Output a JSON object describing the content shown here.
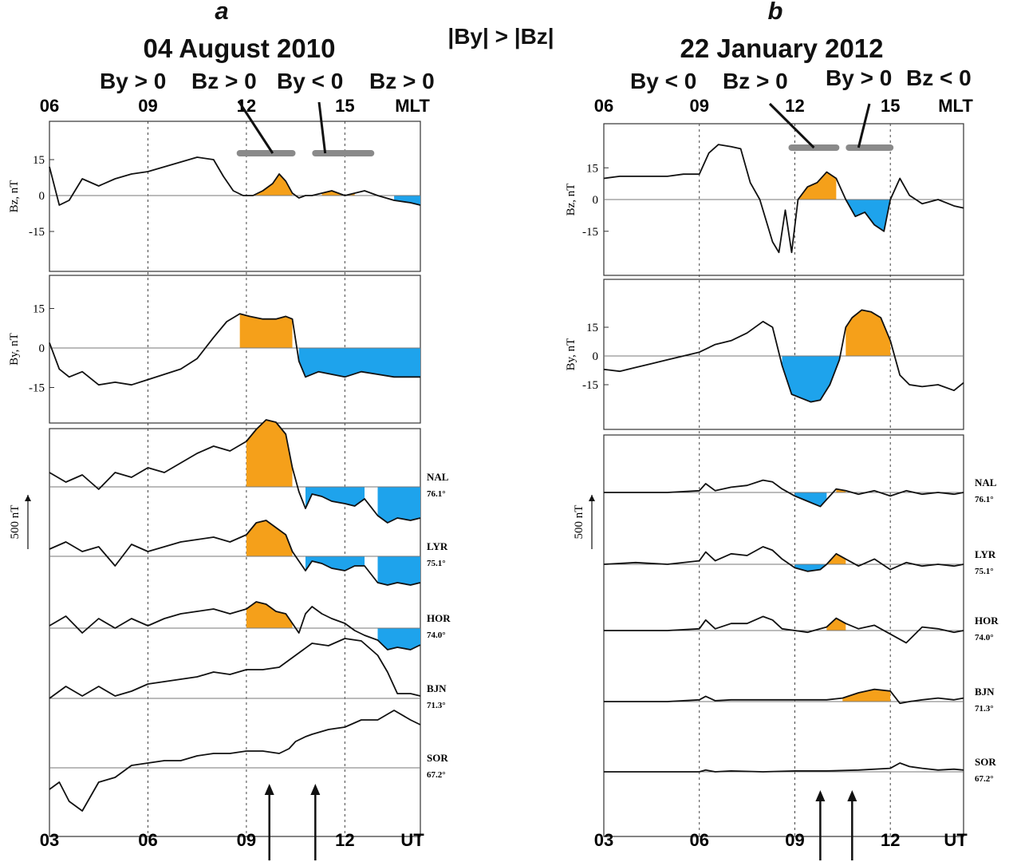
{
  "middle_label": "|By| > |Bz|",
  "colors": {
    "positive_fill": "#f5a01a",
    "negative_fill": "#1ea3ec",
    "line": "#111111",
    "interval_bar": "#8a8a8a"
  },
  "panels": [
    {
      "letter": "a",
      "date": "04 August 2010",
      "conditions": [
        "By > 0",
        "Bz > 0",
        "By < 0",
        "Bz > 0"
      ],
      "mlt_ticks": [
        "06",
        "09",
        "12",
        "15"
      ],
      "mlt_label": "MLT",
      "ut_ticks": [
        "03",
        "06",
        "09",
        "12"
      ],
      "ut_label": "UT",
      "bz_axis": {
        "label": "Bz, nT",
        "ticks": [
          "15",
          "0",
          "-15"
        ]
      },
      "by_axis": {
        "label": "By, nT",
        "ticks": [
          "15",
          "0",
          "-15"
        ]
      },
      "scale_label": "500 nT",
      "stations": [
        {
          "code": "NAL",
          "lat": "76.1°"
        },
        {
          "code": "LYR",
          "lat": "75.1°"
        },
        {
          "code": "HOR",
          "lat": "74.0°"
        },
        {
          "code": "BJN",
          "lat": "71.3°"
        },
        {
          "code": "SOR",
          "lat": "67.2°"
        }
      ]
    },
    {
      "letter": "b",
      "date": "22 January 2012",
      "conditions": [
        "By < 0",
        "Bz > 0",
        "By > 0",
        "Bz < 0"
      ],
      "mlt_ticks": [
        "06",
        "09",
        "12",
        "15"
      ],
      "mlt_label": "MLT",
      "ut_ticks": [
        "03",
        "06",
        "09",
        "12"
      ],
      "ut_label": "UT",
      "bz_axis": {
        "label": "Bz, nT",
        "ticks": [
          "15",
          "0",
          "-15"
        ]
      },
      "by_axis": {
        "label": "By, nT",
        "ticks": [
          "15",
          "0",
          "-15"
        ]
      },
      "scale_label": "500 nT",
      "stations": [
        {
          "code": "NAL",
          "lat": "76.1°"
        },
        {
          "code": "LYR",
          "lat": "75.1°"
        },
        {
          "code": "HOR",
          "lat": "74.0°"
        },
        {
          "code": "BJN",
          "lat": "71.3°"
        },
        {
          "code": "SOR",
          "lat": "67.2°"
        }
      ]
    }
  ],
  "chart_data": [
    {
      "type": "line",
      "panel": "a",
      "x_axis": "UT hours",
      "xlim": [
        3,
        14.3
      ],
      "dashed_guides_ut": [
        6,
        9,
        12
      ],
      "intervals_ut": [
        [
          8.8,
          10.4
        ],
        [
          11.1,
          12.8
        ]
      ],
      "arrows_ut": [
        9.7,
        11.1
      ],
      "imf": {
        "Bz": {
          "ylim": [
            -25,
            25
          ],
          "x": [
            3.0,
            3.3,
            3.6,
            4.0,
            4.5,
            5.0,
            5.5,
            6.0,
            6.5,
            7.0,
            7.5,
            8.0,
            8.3,
            8.6,
            8.9,
            9.2,
            9.5,
            9.8,
            10.0,
            10.2,
            10.4,
            10.6,
            10.8,
            11.0,
            11.3,
            11.6,
            12.0,
            12.3,
            12.6,
            13.0,
            13.5,
            14.0,
            14.3
          ],
          "y": [
            12,
            -4,
            -2,
            7,
            4,
            7,
            9,
            10,
            12,
            14,
            16,
            15,
            8,
            2,
            0,
            0,
            2,
            5,
            9,
            6,
            1,
            -1,
            0,
            0,
            1,
            2,
            0,
            1,
            2,
            0,
            -2,
            -3,
            -4
          ]
        },
        "By": {
          "ylim": [
            -25,
            25
          ],
          "x": [
            3.0,
            3.3,
            3.6,
            4.0,
            4.5,
            5.0,
            5.5,
            6.0,
            6.5,
            7.0,
            7.5,
            8.0,
            8.4,
            8.8,
            9.1,
            9.5,
            9.9,
            10.2,
            10.4,
            10.6,
            10.8,
            11.2,
            11.6,
            12.0,
            12.5,
            13.0,
            13.5,
            14.0,
            14.3
          ],
          "y": [
            2,
            -8,
            -11,
            -9,
            -14,
            -13,
            -14,
            -12,
            -10,
            -8,
            -4,
            4,
            10,
            13,
            12,
            11,
            11,
            12,
            11,
            -5,
            -11,
            -9,
            -10,
            -11,
            -9,
            -10,
            -11,
            -11,
            -11
          ]
        }
      },
      "stations_offset_nT": {
        "NAL": {
          "x": [
            3.0,
            3.5,
            4.0,
            4.5,
            5.0,
            5.5,
            6.0,
            6.5,
            7.0,
            7.5,
            8.0,
            8.5,
            9.0,
            9.3,
            9.6,
            9.9,
            10.2,
            10.4,
            10.6,
            10.8,
            11.0,
            11.3,
            11.6,
            12.0,
            12.3,
            12.6,
            13.0,
            13.3,
            13.6,
            14.0,
            14.3
          ],
          "y": [
            60,
            20,
            50,
            -10,
            60,
            40,
            80,
            60,
            100,
            140,
            170,
            150,
            190,
            240,
            280,
            270,
            220,
            80,
            -20,
            -90,
            -30,
            -40,
            -60,
            -70,
            -80,
            -50,
            -120,
            -150,
            -130,
            -140,
            -130
          ]
        },
        "LYR": {
          "x": [
            3.0,
            3.5,
            4.0,
            4.5,
            5.0,
            5.5,
            6.0,
            6.5,
            7.0,
            7.5,
            8.0,
            8.5,
            9.0,
            9.3,
            9.6,
            9.9,
            10.2,
            10.4,
            10.6,
            10.8,
            11.0,
            11.3,
            11.6,
            12.0,
            12.3,
            12.6,
            13.0,
            13.3,
            13.6,
            14.0,
            14.3
          ],
          "y": [
            30,
            60,
            20,
            40,
            -40,
            50,
            20,
            40,
            60,
            70,
            80,
            60,
            90,
            140,
            150,
            120,
            90,
            20,
            -20,
            -60,
            -20,
            -30,
            -50,
            -60,
            -40,
            -40,
            -110,
            -120,
            -110,
            -120,
            -110
          ]
        },
        "HOR": {
          "x": [
            3.0,
            3.5,
            4.0,
            4.5,
            5.0,
            5.5,
            6.0,
            6.5,
            7.0,
            7.5,
            8.0,
            8.5,
            9.0,
            9.3,
            9.6,
            9.9,
            10.2,
            10.4,
            10.6,
            10.8,
            11.0,
            11.3,
            11.6,
            12.0,
            12.3,
            12.6,
            13.0,
            13.3,
            13.6,
            14.0,
            14.3
          ],
          "y": [
            10,
            50,
            -20,
            40,
            0,
            40,
            10,
            40,
            60,
            70,
            80,
            60,
            80,
            110,
            100,
            70,
            60,
            20,
            -20,
            60,
            90,
            60,
            40,
            20,
            -10,
            -30,
            -50,
            -90,
            -80,
            -90,
            -70
          ]
        },
        "BJN": {
          "x": [
            3.0,
            3.5,
            4.0,
            4.5,
            5.0,
            5.5,
            6.0,
            6.5,
            7.0,
            7.5,
            8.0,
            8.5,
            9.0,
            9.5,
            10.0,
            10.3,
            10.5,
            10.7,
            11.0,
            11.5,
            12.0,
            12.5,
            13.0,
            13.3,
            13.6,
            14.0,
            14.3
          ],
          "y": [
            0,
            50,
            10,
            50,
            10,
            30,
            60,
            70,
            80,
            90,
            110,
            100,
            120,
            120,
            130,
            160,
            180,
            200,
            230,
            220,
            250,
            240,
            180,
            110,
            20,
            20,
            10
          ]
        },
        "SOR": {
          "x": [
            3.0,
            3.3,
            3.6,
            4.0,
            4.5,
            5.0,
            5.5,
            6.0,
            6.5,
            7.0,
            7.5,
            8.0,
            8.5,
            9.0,
            9.5,
            10.0,
            10.3,
            10.5,
            10.8,
            11.0,
            11.5,
            12.0,
            12.5,
            13.0,
            13.5,
            14.0,
            14.3
          ],
          "y": [
            -90,
            -60,
            -140,
            -180,
            -60,
            -40,
            10,
            20,
            30,
            30,
            50,
            60,
            60,
            70,
            70,
            60,
            80,
            110,
            130,
            140,
            160,
            170,
            200,
            200,
            240,
            200,
            180
          ]
        }
      }
    },
    {
      "type": "line",
      "panel": "b",
      "x_axis": "UT hours",
      "xlim": [
        3,
        14.3
      ],
      "dashed_guides_ut": [
        6,
        9,
        12
      ],
      "intervals_ut": [
        [
          8.9,
          10.3
        ],
        [
          10.7,
          12.0
        ]
      ],
      "arrows_ut": [
        9.8,
        10.8
      ],
      "imf": {
        "Bz": {
          "ylim": [
            -28,
            28
          ],
          "x": [
            3.0,
            3.5,
            4.0,
            4.5,
            5.0,
            5.5,
            6.0,
            6.3,
            6.6,
            7.0,
            7.3,
            7.6,
            7.9,
            8.1,
            8.3,
            8.5,
            8.7,
            8.9,
            9.1,
            9.4,
            9.7,
            10.0,
            10.3,
            10.6,
            10.9,
            11.2,
            11.5,
            11.8,
            12.0,
            12.3,
            12.6,
            13.0,
            13.5,
            14.0,
            14.3
          ],
          "y": [
            10,
            11,
            11,
            11,
            11,
            12,
            12,
            22,
            26,
            25,
            24,
            8,
            0,
            -10,
            -20,
            -25,
            -5,
            -25,
            0,
            6,
            8,
            13,
            10,
            0,
            -8,
            -6,
            -12,
            -15,
            0,
            10,
            2,
            -2,
            0,
            -3,
            -4
          ]
        },
        "By": {
          "ylim": [
            -28,
            28
          ],
          "x": [
            3.0,
            3.5,
            4.0,
            4.5,
            5.0,
            5.5,
            6.0,
            6.5,
            7.0,
            7.5,
            8.0,
            8.3,
            8.6,
            8.9,
            9.2,
            9.5,
            9.8,
            10.1,
            10.4,
            10.6,
            10.8,
            11.1,
            11.4,
            11.7,
            12.0,
            12.3,
            12.6,
            13.0,
            13.5,
            14.0,
            14.3
          ],
          "y": [
            -7,
            -8,
            -6,
            -4,
            -2,
            0,
            2,
            6,
            8,
            12,
            18,
            15,
            -5,
            -20,
            -22,
            -24,
            -23,
            -15,
            -2,
            15,
            20,
            24,
            23,
            20,
            8,
            -10,
            -15,
            -16,
            -15,
            -18,
            -14
          ]
        }
      },
      "stations_offset_nT": {
        "NAL": {
          "x": [
            3.0,
            4.0,
            5.0,
            6.0,
            6.2,
            6.5,
            7.0,
            7.5,
            8.0,
            8.3,
            8.6,
            9.0,
            9.4,
            9.8,
            10.0,
            10.3,
            10.6,
            11.0,
            11.5,
            12.0,
            12.5,
            13.0,
            13.5,
            14.0,
            14.3
          ],
          "y": [
            0,
            0,
            0,
            10,
            50,
            10,
            30,
            40,
            70,
            60,
            20,
            -20,
            -50,
            -80,
            -40,
            20,
            10,
            -10,
            10,
            -20,
            10,
            -10,
            0,
            -10,
            0
          ]
        },
        "LYR": {
          "x": [
            3.0,
            4.0,
            5.0,
            6.0,
            6.2,
            6.5,
            7.0,
            7.5,
            8.0,
            8.3,
            8.6,
            9.0,
            9.4,
            9.8,
            10.0,
            10.3,
            10.6,
            11.0,
            11.5,
            12.0,
            12.5,
            13.0,
            13.5,
            14.0,
            14.3
          ],
          "y": [
            0,
            10,
            0,
            20,
            70,
            20,
            60,
            50,
            100,
            80,
            30,
            -20,
            -40,
            -30,
            0,
            60,
            30,
            -10,
            30,
            -30,
            10,
            -10,
            0,
            -10,
            0
          ]
        },
        "HOR": {
          "x": [
            3.0,
            4.0,
            5.0,
            6.0,
            6.2,
            6.5,
            7.0,
            7.5,
            8.0,
            8.3,
            8.6,
            9.0,
            9.4,
            9.8,
            10.0,
            10.3,
            10.6,
            11.0,
            11.5,
            12.0,
            12.5,
            13.0,
            13.5,
            14.0,
            14.3
          ],
          "y": [
            0,
            0,
            0,
            10,
            60,
            10,
            40,
            40,
            80,
            60,
            10,
            0,
            -10,
            10,
            20,
            70,
            40,
            10,
            30,
            -20,
            -70,
            20,
            10,
            -10,
            0
          ]
        },
        "BJN": {
          "x": [
            3.0,
            4.0,
            5.0,
            6.0,
            6.2,
            6.5,
            7.0,
            8.0,
            9.0,
            10.0,
            10.5,
            11.0,
            11.5,
            12.0,
            12.3,
            12.6,
            13.0,
            13.5,
            14.0,
            14.3
          ],
          "y": [
            0,
            0,
            0,
            10,
            30,
            5,
            10,
            10,
            10,
            10,
            20,
            50,
            70,
            60,
            -10,
            0,
            10,
            20,
            10,
            20
          ]
        },
        "SOR": {
          "x": [
            3.0,
            4.0,
            5.0,
            6.0,
            6.2,
            6.5,
            7.0,
            8.0,
            9.0,
            10.0,
            11.0,
            12.0,
            12.3,
            12.6,
            13.0,
            13.5,
            14.0,
            14.3
          ],
          "y": [
            0,
            0,
            0,
            0,
            10,
            0,
            5,
            0,
            5,
            5,
            10,
            20,
            50,
            30,
            20,
            10,
            15,
            10
          ]
        }
      }
    }
  ]
}
